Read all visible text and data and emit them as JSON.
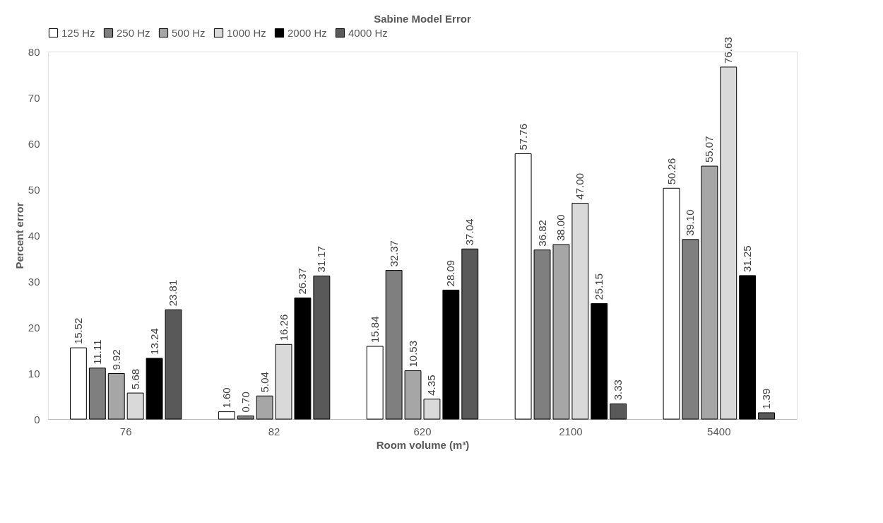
{
  "chart_data": {
    "type": "bar",
    "title": "Sabine Model Error",
    "xlabel": "Room volume (m³)",
    "ylabel": "Percent error",
    "categories": [
      "76",
      "82",
      "620",
      "2100",
      "5400"
    ],
    "series": [
      {
        "name": "125 Hz",
        "color": "#ffffff",
        "values": [
          15.52,
          1.6,
          15.84,
          57.76,
          50.26
        ],
        "value_labels": [
          "15.52",
          "1.60",
          "15.84",
          "57.76",
          "50.26"
        ]
      },
      {
        "name": "250 Hz",
        "color": "#7f7f7f",
        "values": [
          11.11,
          0.7,
          32.37,
          36.82,
          39.1
        ],
        "value_labels": [
          "11.11",
          "0.70",
          "32.37",
          "36.82",
          "39.10"
        ]
      },
      {
        "name": "500 Hz",
        "color": "#a6a6a6",
        "values": [
          9.92,
          5.04,
          10.53,
          38.0,
          55.07
        ],
        "value_labels": [
          "9.92",
          "5.04",
          "10.53",
          "38.00",
          "55.07"
        ]
      },
      {
        "name": "1000 Hz",
        "color": "#d9d9d9",
        "values": [
          5.68,
          16.26,
          4.35,
          47.0,
          76.63
        ],
        "value_labels": [
          "5.68",
          "16.26",
          "4.35",
          "47.00",
          "76.63"
        ]
      },
      {
        "name": "2000 Hz",
        "color": "#000000",
        "values": [
          13.24,
          26.37,
          28.09,
          25.15,
          31.25
        ],
        "value_labels": [
          "13.24",
          "26.37",
          "28.09",
          "25.15",
          "31.25"
        ]
      },
      {
        "name": "4000 Hz",
        "color": "#595959",
        "values": [
          23.81,
          31.17,
          37.04,
          3.33,
          1.39
        ],
        "value_labels": [
          "23.81",
          "31.17",
          "37.04",
          "3.33",
          "1.39"
        ]
      }
    ],
    "ylim": [
      0,
      80
    ],
    "yticks": [
      0,
      10,
      20,
      30,
      40,
      50,
      60,
      70,
      80
    ],
    "grid": false,
    "legend": "top"
  }
}
